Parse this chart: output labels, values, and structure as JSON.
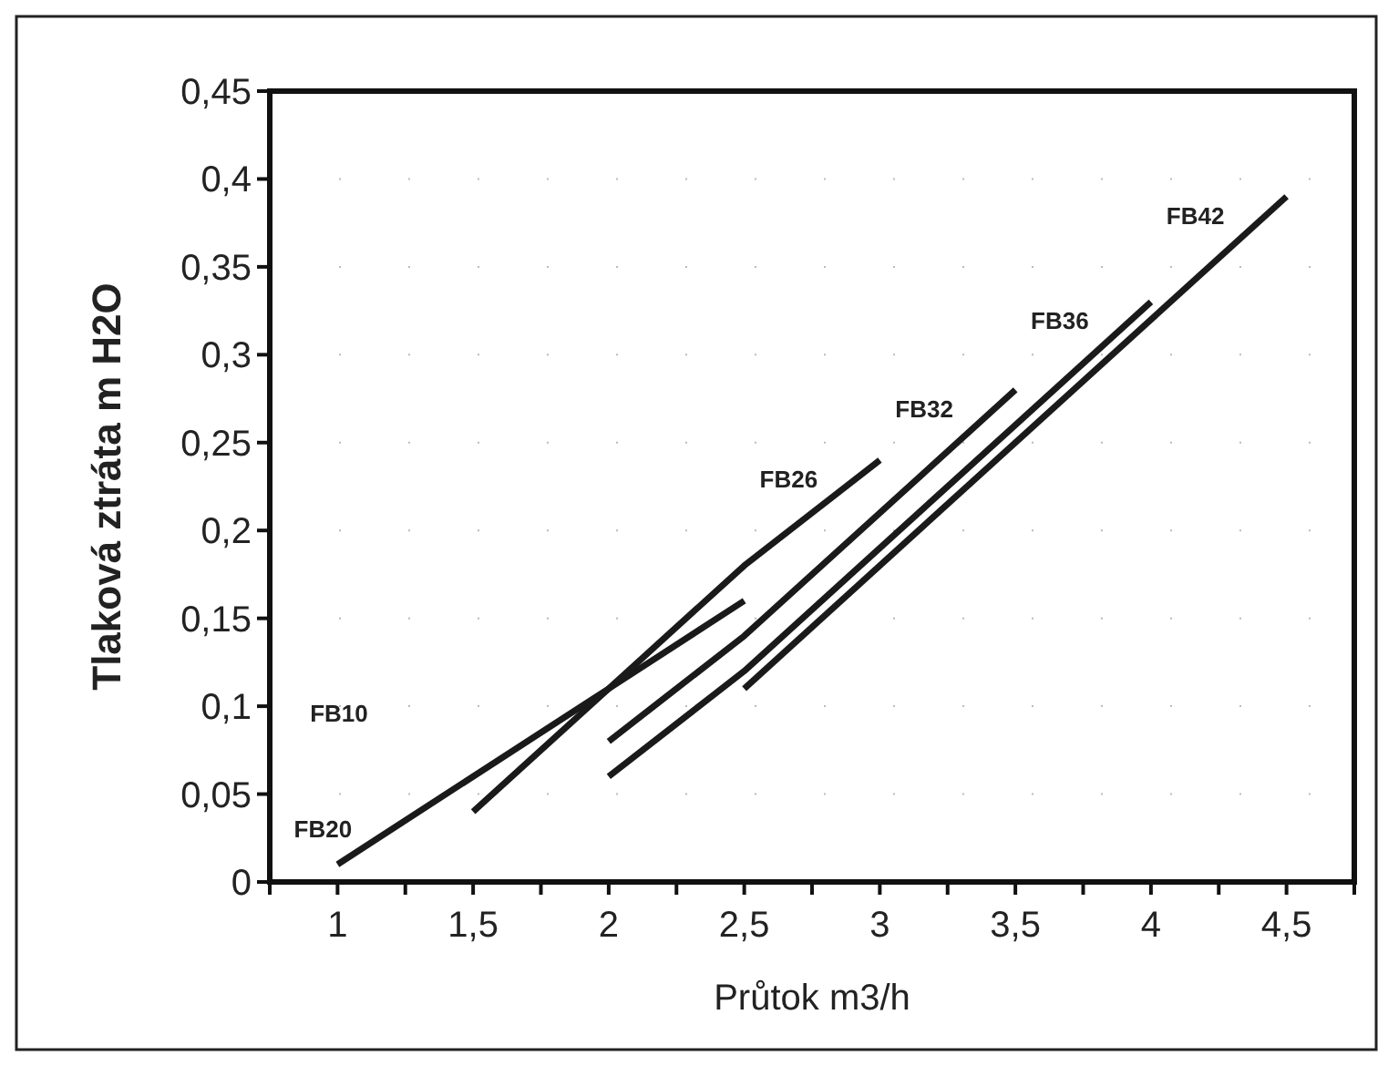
{
  "chart_data": {
    "type": "line",
    "xlabel": "Průtok  m3/h",
    "ylabel": "Tlaková ztráta m H2O",
    "xlim": [
      0.75,
      4.75
    ],
    "xticks": [
      {
        "value": 0.75,
        "label": null
      },
      {
        "value": 1,
        "label": "1"
      },
      {
        "value": 1.25,
        "label": null
      },
      {
        "value": 1.5,
        "label": "1,5"
      },
      {
        "value": 1.75,
        "label": null
      },
      {
        "value": 2,
        "label": "2"
      },
      {
        "value": 2.25,
        "label": null
      },
      {
        "value": 2.5,
        "label": "2,5"
      },
      {
        "value": 2.75,
        "label": null
      },
      {
        "value": 3,
        "label": "3"
      },
      {
        "value": 3.25,
        "label": null
      },
      {
        "value": 3.5,
        "label": "3,5"
      },
      {
        "value": 3.75,
        "label": null
      },
      {
        "value": 4,
        "label": "4"
      },
      {
        "value": 4.25,
        "label": null
      },
      {
        "value": 4.5,
        "label": "4,5"
      },
      {
        "value": 4.75,
        "label": null
      }
    ],
    "ylim": [
      0,
      0.45
    ],
    "yticks": [
      0,
      {
        "value": 0.05,
        "label": "0,05"
      },
      {
        "value": 0.1,
        "label": "0,1"
      },
      {
        "value": 0.15,
        "label": "0,15"
      },
      {
        "value": 0.2,
        "label": "0,2"
      },
      {
        "value": 0.25,
        "label": "0,25"
      },
      {
        "value": 0.3,
        "label": "0,3"
      },
      {
        "value": 0.35,
        "label": "0,35"
      },
      {
        "value": 0.4,
        "label": "0,4"
      },
      {
        "value": 0.45,
        "label": "0,45"
      }
    ],
    "grid": "y",
    "marker": "none",
    "line_style": "solid",
    "series": [
      {
        "color": "#1a1a1a",
        "x": [
          1,
          2,
          2.5
        ],
        "values": [
          0.01,
          0.11,
          0.16
        ]
      },
      {
        "color": "#1a1a1a",
        "x": [
          1.5,
          2,
          2.5,
          3
        ],
        "values": [
          0.04,
          0.11,
          0.18,
          0.24
        ]
      },
      {
        "color": "#1a1a1a",
        "x": [
          2,
          2.5,
          3.5
        ],
        "values": [
          0.08,
          0.14,
          0.28
        ]
      },
      {
        "color": "#1a1a1a",
        "x": [
          2,
          2.5,
          4
        ],
        "values": [
          0.06,
          0.12,
          0.33
        ]
      },
      {
        "color": "#1a1a1a",
        "x": [
          2.5,
          4.5
        ],
        "values": [
          0.11,
          0.39
        ]
      }
    ],
    "annotations": [
      "FB10",
      {
        "text": "FB20",
        "x": 1,
        "y": 0.01
      },
      {
        "text": "FB26",
        "x": 3,
        "y": 0.24
      },
      {
        "text": "FB32",
        "x": 3.5,
        "y": 0.28
      },
      {
        "text": "FB36",
        "x": 4,
        "y": 0.33
      },
      {
        "text": "FB42",
        "x": 4.5,
        "y": 0.39
      }
    ]
  }
}
